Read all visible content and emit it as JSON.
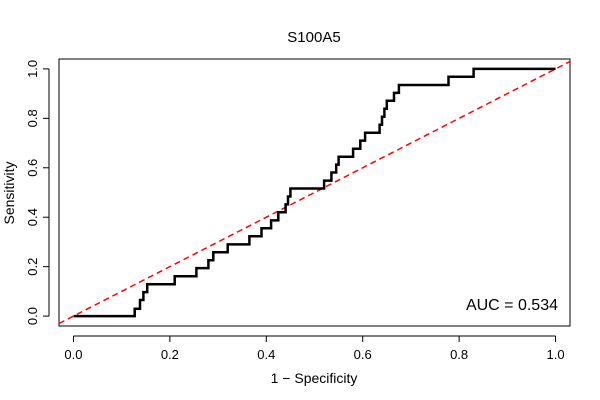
{
  "chart_data": {
    "type": "line",
    "title": "S100A5",
    "xlabel": "1 − Specificity",
    "ylabel": "Sensitivity",
    "xlim": [
      -0.03,
      1.03
    ],
    "ylim": [
      -0.04,
      1.04
    ],
    "x_ticks": [
      0.0,
      0.2,
      0.4,
      0.6,
      0.8,
      1.0
    ],
    "y_ticks": [
      0.0,
      0.2,
      0.4,
      0.6,
      0.8,
      1.0
    ],
    "x_tick_labels": [
      "0.0",
      "0.2",
      "0.4",
      "0.6",
      "0.8",
      "1.0"
    ],
    "y_tick_labels": [
      "0.0",
      "0.2",
      "0.4",
      "0.6",
      "0.8",
      "1.0"
    ],
    "grid": false,
    "annotation": "AUC = 0.534",
    "series": [
      {
        "color": "#000000",
        "style": "solid",
        "x": [
          0.0,
          0.127,
          0.127,
          0.138,
          0.138,
          0.145,
          0.145,
          0.153,
          0.153,
          0.21,
          0.21,
          0.255,
          0.255,
          0.28,
          0.28,
          0.29,
          0.29,
          0.32,
          0.32,
          0.365,
          0.365,
          0.39,
          0.39,
          0.41,
          0.41,
          0.425,
          0.425,
          0.44,
          0.44,
          0.445,
          0.445,
          0.45,
          0.45,
          0.52,
          0.52,
          0.535,
          0.535,
          0.545,
          0.545,
          0.55,
          0.55,
          0.58,
          0.58,
          0.595,
          0.595,
          0.605,
          0.605,
          0.635,
          0.635,
          0.64,
          0.64,
          0.645,
          0.645,
          0.65,
          0.65,
          0.665,
          0.665,
          0.675,
          0.675,
          0.68,
          0.68,
          0.778,
          0.778,
          0.83,
          0.83,
          1.0
        ],
        "y": [
          0.0,
          0.0,
          0.03,
          0.03,
          0.065,
          0.065,
          0.097,
          0.097,
          0.129,
          0.129,
          0.161,
          0.161,
          0.194,
          0.194,
          0.226,
          0.226,
          0.258,
          0.258,
          0.29,
          0.29,
          0.323,
          0.323,
          0.355,
          0.355,
          0.387,
          0.387,
          0.42,
          0.42,
          0.452,
          0.452,
          0.484,
          0.484,
          0.516,
          0.516,
          0.548,
          0.548,
          0.581,
          0.581,
          0.613,
          0.613,
          0.645,
          0.645,
          0.677,
          0.677,
          0.71,
          0.71,
          0.742,
          0.742,
          0.774,
          0.774,
          0.806,
          0.806,
          0.839,
          0.839,
          0.871,
          0.871,
          0.903,
          0.903,
          0.935,
          0.935,
          0.935,
          0.935,
          0.968,
          0.968,
          1.0,
          1.0
        ]
      },
      {
        "color": "#ff0000",
        "style": "dashed",
        "x": [
          -0.03,
          1.03
        ],
        "y": [
          -0.03,
          1.03
        ]
      }
    ]
  }
}
